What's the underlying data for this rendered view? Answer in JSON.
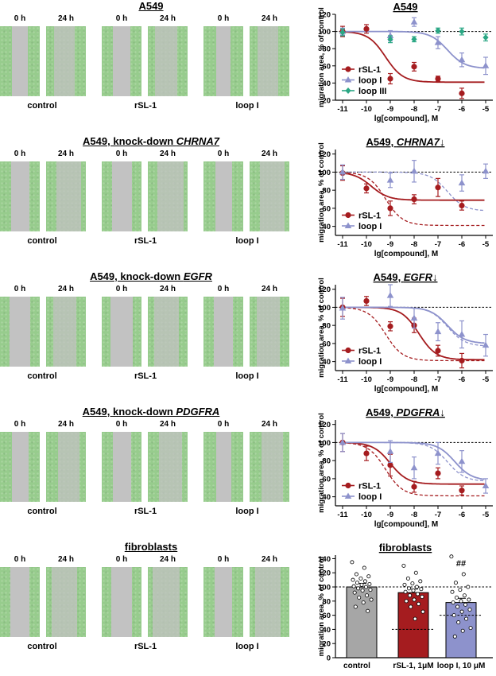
{
  "rows": [
    {
      "title_pre": "A549",
      "title_gene": "",
      "time_labels": [
        "0 h",
        "24 h"
      ],
      "group_labels": [
        "control",
        "rSL-1",
        "loop I"
      ]
    },
    {
      "title_pre": "A549,  knock-down ",
      "title_gene": "CHRNA7",
      "time_labels": [
        "0 h",
        "24 h"
      ],
      "group_labels": [
        "control",
        "rSL-1",
        "loop I"
      ]
    },
    {
      "title_pre": "A549,  knock-down ",
      "title_gene": "EGFR",
      "time_labels": [
        "0 h",
        "24 h"
      ],
      "group_labels": [
        "control",
        "rSL-1",
        "loop I"
      ]
    },
    {
      "title_pre": "A549,  knock-down ",
      "title_gene": "PDGFRA",
      "time_labels": [
        "0 h",
        "24 h"
      ],
      "group_labels": [
        "control",
        "rSL-1",
        "loop I"
      ]
    },
    {
      "title_pre": "fibroblasts",
      "title_gene": "",
      "time_labels": [
        "0 h",
        "24 h"
      ],
      "group_labels": [
        "control",
        "rSL-1",
        "loop I"
      ]
    }
  ],
  "colors": {
    "rsl1": "#a51c1f",
    "loop1": "#8d92cc",
    "loop3": "#2aa784",
    "control_bar": "#a6a6a6",
    "image_bg": "#97cc8d",
    "image_gap": "#c2c2c2"
  },
  "chart_data": [
    {
      "type": "line",
      "title": "A549",
      "title_gene": "",
      "title_arrow": "",
      "xlabel": "lg[compound], M",
      "ylabel": "migration area, % of control",
      "x_ticks": [
        -11,
        -10,
        -9,
        -8,
        -7,
        -6,
        -5
      ],
      "y_ticks": [
        20,
        40,
        60,
        80,
        100,
        120
      ],
      "xlim": [
        -11.3,
        -4.7
      ],
      "ylim": [
        20,
        120
      ],
      "reference_line": 100,
      "legend": "lower-left",
      "series": [
        {
          "name": "rSL-1",
          "color": "#a51c1f",
          "marker": "circle",
          "x": [
            -11,
            -10,
            -9,
            -8,
            -7,
            -6
          ],
          "y": [
            100,
            103,
            45,
            59,
            45,
            28
          ],
          "err": [
            6,
            5,
            6,
            5,
            3,
            6
          ],
          "fit": {
            "top": 100,
            "bottom": 41,
            "logec50": -9.2
          }
        },
        {
          "name": "loop I",
          "color": "#8d92cc",
          "marker": "triangle",
          "x": [
            -11,
            -9,
            -8,
            -7,
            -6,
            -5
          ],
          "y": [
            100,
            95,
            111,
            87,
            67,
            60
          ],
          "err": [
            4,
            6,
            5,
            7,
            8,
            10
          ],
          "fit": {
            "top": 100,
            "bottom": 57,
            "logec50": -6.6
          }
        },
        {
          "name": "loop III",
          "color": "#2aa784",
          "marker": "diamond",
          "x": [
            -11,
            -9,
            -8,
            -7,
            -6,
            -5
          ],
          "y": [
            99,
            91,
            91,
            101,
            100,
            93
          ],
          "err": [
            4,
            4,
            3,
            3,
            4,
            4
          ],
          "fit": null
        }
      ]
    },
    {
      "type": "line",
      "title": "A549, ",
      "title_gene": "CHRNA7",
      "title_arrow": "↓",
      "xlabel": "lg[compound], M",
      "ylabel": "migration area, % of control",
      "x_ticks": [
        -11,
        -10,
        -9,
        -8,
        -7,
        -6,
        -5
      ],
      "y_ticks": [
        40,
        60,
        80,
        100,
        120
      ],
      "xlim": [
        -11.3,
        -4.7
      ],
      "ylim": [
        30,
        125
      ],
      "reference_line": 100,
      "legend": "lower-left",
      "series": [
        {
          "name": "rSL-1",
          "color": "#a51c1f",
          "marker": "circle",
          "x": [
            -11,
            -10,
            -9,
            -8,
            -7,
            -6
          ],
          "y": [
            99,
            82,
            60,
            70,
            83,
            63
          ],
          "err": [
            8,
            5,
            8,
            5,
            10,
            5
          ],
          "fit": {
            "top": 100,
            "bottom": 69,
            "logec50": -9.8
          }
        },
        {
          "name": "loop I",
          "color": "#8d92cc",
          "marker": "triangle",
          "x": [
            -11,
            -9,
            -8,
            -6,
            -5
          ],
          "y": [
            100,
            91,
            101,
            88,
            101
          ],
          "err": [
            8,
            8,
            12,
            9,
            8
          ],
          "fit": null
        }
      ],
      "reference_fits": [
        {
          "color": "#a51c1f",
          "top": 100,
          "bottom": 41,
          "logec50": -9.2
        },
        {
          "color": "#8d92cc",
          "top": 100,
          "bottom": 57,
          "logec50": -6.6
        }
      ]
    },
    {
      "type": "line",
      "title": "A549, ",
      "title_gene": "EGFR",
      "title_arrow": "↓",
      "xlabel": "lg[compound], M",
      "ylabel": "migration area, % of control",
      "x_ticks": [
        -11,
        -10,
        -9,
        -8,
        -7,
        -6,
        -5
      ],
      "y_ticks": [
        40,
        60,
        80,
        100,
        120
      ],
      "xlim": [
        -11.3,
        -4.7
      ],
      "ylim": [
        30,
        125
      ],
      "reference_line": 100,
      "legend": "lower-left",
      "series": [
        {
          "name": "rSL-1",
          "color": "#a51c1f",
          "marker": "circle",
          "x": [
            -11,
            -10,
            -9,
            -8,
            -7,
            -6
          ],
          "y": [
            100,
            107,
            79,
            80,
            52,
            41
          ],
          "err": [
            10,
            5,
            5,
            8,
            6,
            8
          ],
          "fit": {
            "top": 100,
            "bottom": 42,
            "logec50": -7.8
          }
        },
        {
          "name": "loop I",
          "color": "#8d92cc",
          "marker": "triangle",
          "x": [
            -11,
            -9,
            -8,
            -7,
            -6,
            -5
          ],
          "y": [
            99,
            113,
            88,
            73,
            70,
            58
          ],
          "err": [
            12,
            12,
            11,
            10,
            15,
            12
          ],
          "fit": {
            "top": 100,
            "bottom": 60,
            "logec50": -6.6
          }
        }
      ],
      "reference_fits": [
        {
          "color": "#a51c1f",
          "top": 100,
          "bottom": 41,
          "logec50": -9.2
        },
        {
          "color": "#8d92cc",
          "top": 100,
          "bottom": 57,
          "logec50": -6.6
        }
      ]
    },
    {
      "type": "line",
      "title": "A549, ",
      "title_gene": "PDGFRA",
      "title_arrow": "↓",
      "xlabel": "lg[compound], M",
      "ylabel": "migration area, % of control",
      "x_ticks": [
        -11,
        -10,
        -9,
        -8,
        -7,
        -6,
        -5
      ],
      "y_ticks": [
        40,
        60,
        80,
        100,
        120
      ],
      "xlim": [
        -11.3,
        -4.7
      ],
      "ylim": [
        30,
        125
      ],
      "reference_line": 100,
      "legend": "lower-left",
      "series": [
        {
          "name": "rSL-1",
          "color": "#a51c1f",
          "marker": "circle",
          "x": [
            -11,
            -10,
            -9,
            -8,
            -7,
            -6
          ],
          "y": [
            100,
            88,
            75,
            51,
            66,
            47
          ],
          "err": [
            10,
            8,
            12,
            6,
            6,
            5
          ],
          "fit": {
            "top": 100,
            "bottom": 54,
            "logec50": -9.0
          }
        },
        {
          "name": "loop I",
          "color": "#8d92cc",
          "marker": "triangle",
          "x": [
            -11,
            -9,
            -8,
            -7,
            -6,
            -5
          ],
          "y": [
            100,
            90,
            72,
            88,
            79,
            52
          ],
          "err": [
            10,
            12,
            12,
            12,
            12,
            8
          ],
          "fit": {
            "top": 100,
            "bottom": 58,
            "logec50": -6.3
          }
        }
      ],
      "reference_fits": [
        {
          "color": "#a51c1f",
          "top": 100,
          "bottom": 41,
          "logec50": -9.2
        },
        {
          "color": "#8d92cc",
          "top": 100,
          "bottom": 57,
          "logec50": -6.6
        }
      ]
    },
    {
      "type": "bar",
      "title": "fibroblasts",
      "ylabel": "migration area, % of control",
      "categories": [
        "control",
        "rSL-1, 1μM",
        "loop I, 10 μM"
      ],
      "values": [
        100,
        92,
        78
      ],
      "errors": [
        5,
        5,
        6
      ],
      "colors": [
        "#a6a6a6",
        "#a51c1f",
        "#8d92cc"
      ],
      "y_ticks": [
        0,
        20,
        40,
        60,
        80,
        100,
        120,
        140
      ],
      "ylim": [
        0,
        145
      ],
      "reference_line": 100,
      "reference_levels": [
        null,
        40,
        60
      ],
      "annotation": {
        "text": "##",
        "category": 2
      },
      "points": [
        [
          135,
          127,
          118,
          115,
          112,
          110,
          108,
          106,
          104,
          103,
          101,
          100,
          98,
          96,
          95,
          92,
          88,
          85,
          82,
          78,
          72,
          66
        ],
        [
          130,
          120,
          112,
          108,
          105,
          103,
          100,
          98,
          97,
          95,
          93,
          90,
          88,
          86,
          82,
          80,
          76,
          72,
          65,
          55
        ],
        [
          143,
          118,
          106,
          100,
          96,
          93,
          88,
          85,
          82,
          80,
          78,
          75,
          72,
          68,
          65,
          60,
          55,
          50,
          42,
          38,
          30
        ]
      ]
    }
  ]
}
